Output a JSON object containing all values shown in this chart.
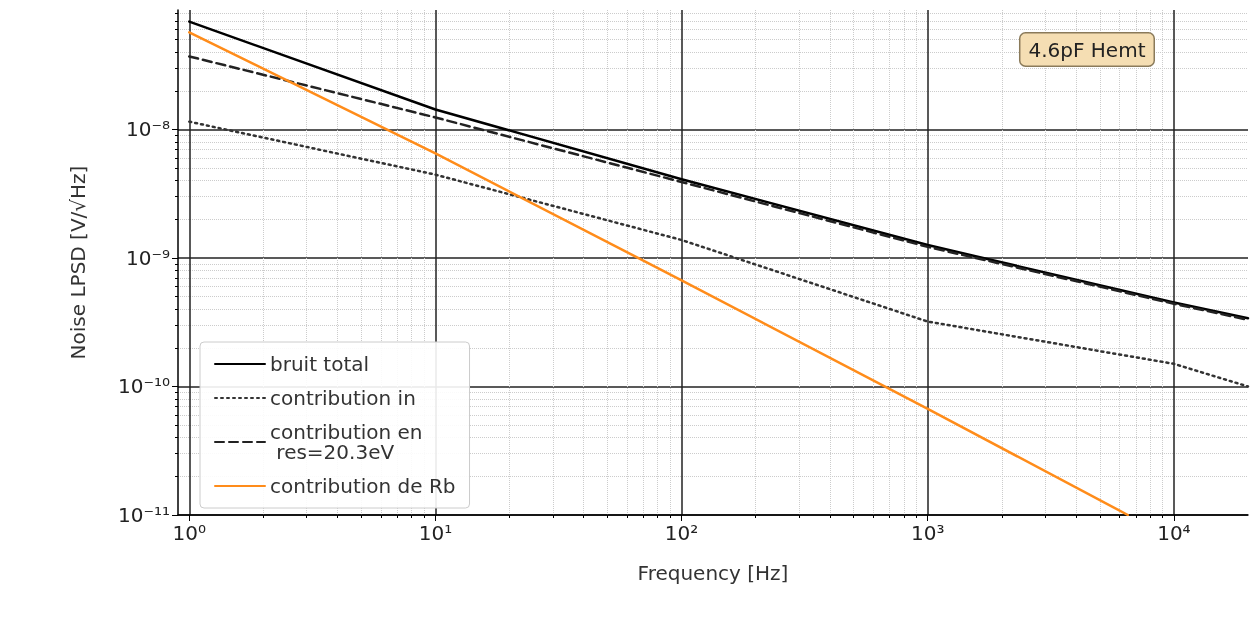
{
  "chart_data": {
    "type": "line",
    "xlabel": "Frequency [Hz]",
    "ylabel": "Noise LPSD [V/√Hz]",
    "annotations": [
      "4.6pF Hemt"
    ],
    "x": [
      1,
      10,
      100,
      1000,
      10000,
      20000
    ],
    "series": [
      {
        "name": "bruit total",
        "color": "#000000",
        "line_style": "solid",
        "values": [
          6.9e-08,
          1.43e-08,
          4.1e-09,
          1.26e-09,
          4.5e-10,
          3.4e-10
        ]
      },
      {
        "name": "contribution in",
        "color": "#333333",
        "line_style": "dotted",
        "values": [
          1.15e-08,
          4.45e-09,
          1.38e-09,
          3.2e-10,
          1.5e-10,
          1e-10
        ]
      },
      {
        "name": "contribution en\n res=20.3eV",
        "color": "#222222",
        "line_style": "dashed",
        "values": [
          3.7e-08,
          1.24e-08,
          3.9e-09,
          1.22e-09,
          4.4e-10,
          3.3e-10
        ]
      },
      {
        "name": "contribution de Rb",
        "color": "#ff8c1a",
        "line_style": "solid",
        "x": [
          1,
          10,
          100,
          1000,
          6500
        ],
        "values": [
          5.7e-08,
          6.5e-09,
          6.7e-10,
          6.7e-11,
          1e-11
        ]
      }
    ],
    "log": "xy",
    "grid": true,
    "legend": "bottom left",
    "marker": "none",
    "xlim": [
      0.9,
      20000
    ],
    "ylim": [
      1e-11,
      8.5e-08
    ],
    "xticks": [
      {
        "value": 1,
        "label": "10⁰"
      },
      {
        "value": 10,
        "label": "10¹"
      },
      {
        "value": 100,
        "label": "10²"
      },
      {
        "value": 1000,
        "label": "10³"
      },
      {
        "value": 10000,
        "label": "10⁴"
      }
    ],
    "yticks": [
      {
        "value": 1e-11,
        "label": "10⁻¹¹"
      },
      {
        "value": 1e-10,
        "label": "10⁻¹⁰"
      },
      {
        "value": 1e-09,
        "label": "10⁻⁹"
      },
      {
        "value": 1e-08,
        "label": "10⁻⁸"
      }
    ]
  }
}
